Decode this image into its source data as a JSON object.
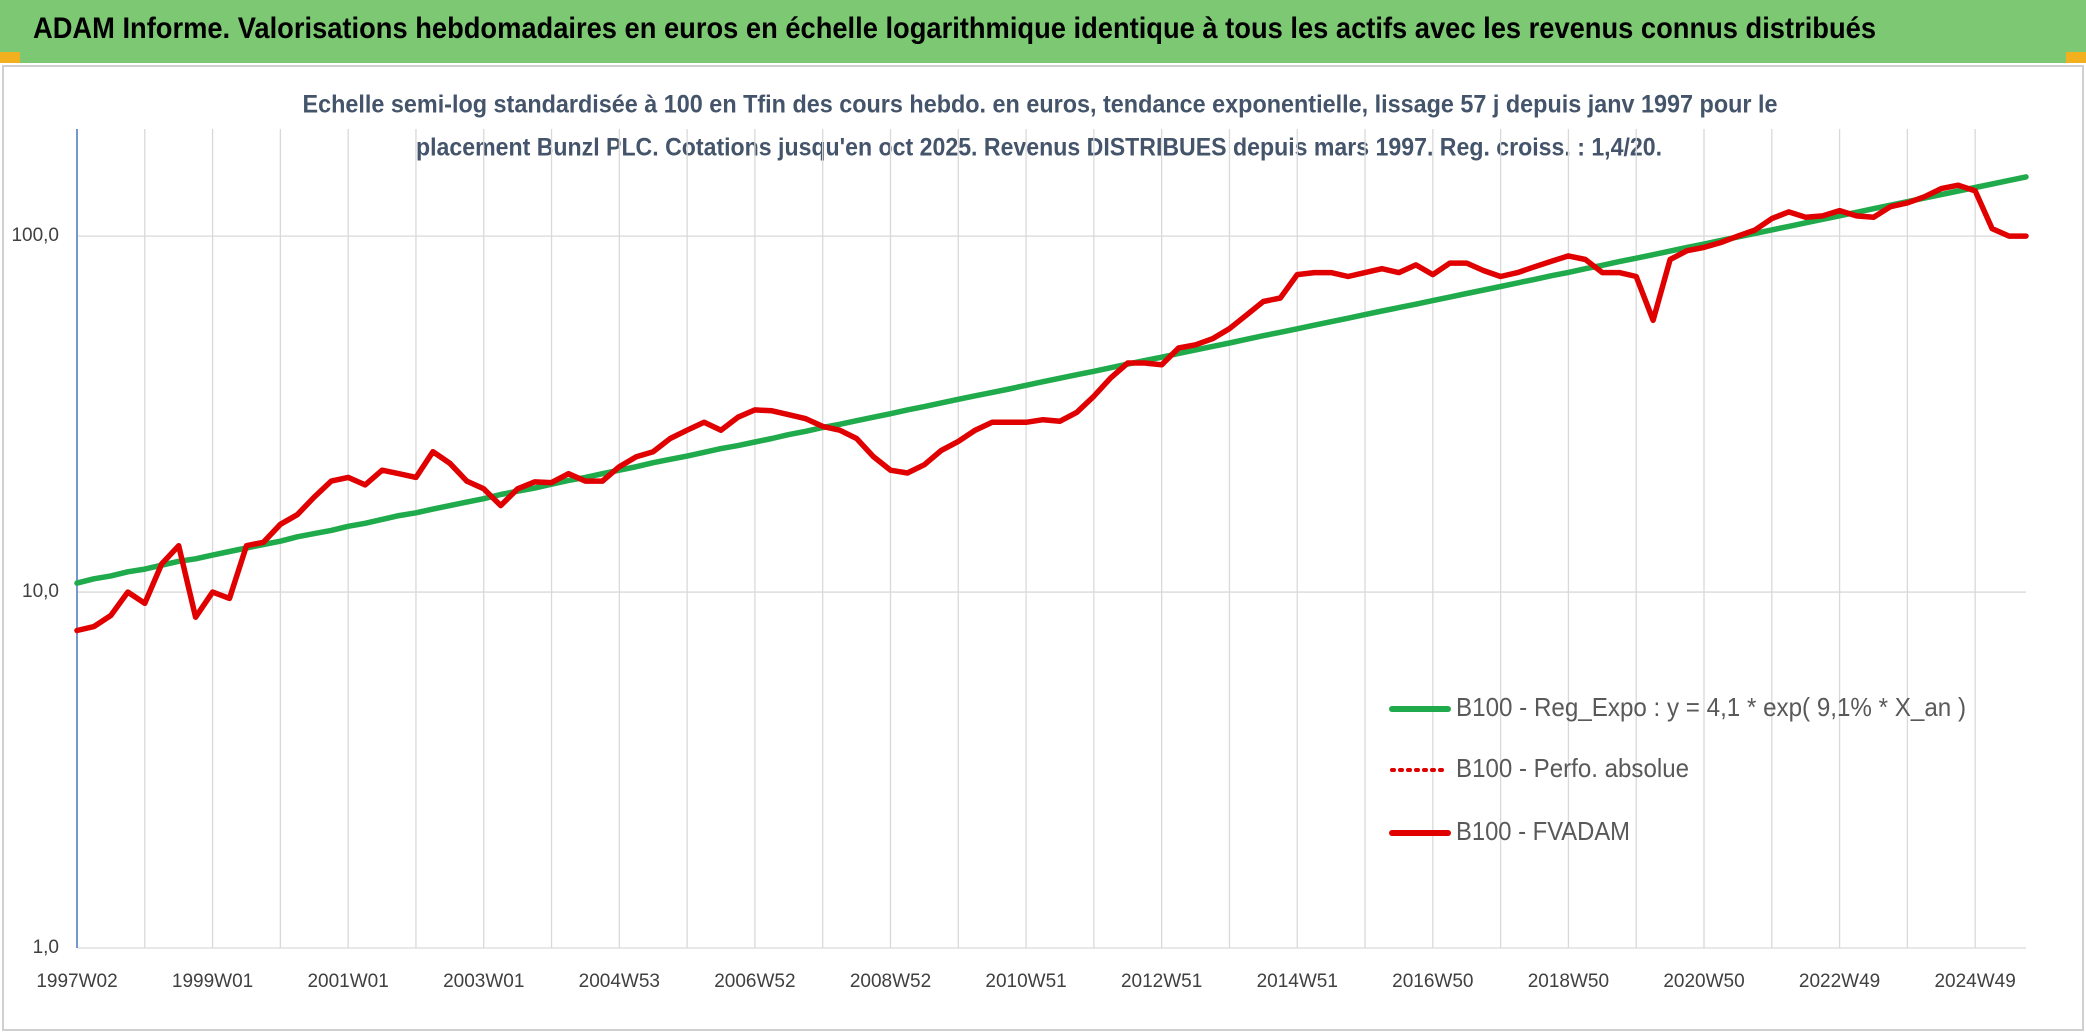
{
  "chart_data": {
    "type": "line",
    "title": "ADAM Informe. Valorisations hebdomadaires en euros en échelle logarithmique identique à tous les actifs avec les revenus connus distribués",
    "subtitle": [
      "Echelle semi-log standardisée à 100 en Tfin des cours hebdo. en euros, tendance exponentielle, lissage 57 j depuis janv 1997 pour le",
      "placement Bunzl PLC. Cotations jusqu'en oct 2025. Revenus DISTRIBUES depuis mars 1997. Reg. croiss. : 1,4/20."
    ],
    "categories": [
      "1997W02",
      null,
      null,
      null,
      null,
      null,
      null,
      null,
      "1999W01",
      null,
      null,
      null,
      null,
      null,
      null,
      null,
      "2001W01",
      null,
      null,
      null,
      null,
      null,
      null,
      null,
      "2003W01",
      null,
      null,
      null,
      null,
      null,
      null,
      null,
      "2004W53",
      null,
      null,
      null,
      null,
      null,
      null,
      null,
      "2006W52",
      null,
      null,
      null,
      null,
      null,
      null,
      null,
      "2008W52",
      null,
      null,
      null,
      null,
      null,
      null,
      null,
      "2010W51",
      null,
      null,
      null,
      null,
      null,
      null,
      null,
      "2012W51",
      null,
      null,
      null,
      null,
      null,
      null,
      null,
      "2014W51",
      null,
      null,
      null,
      null,
      null,
      null,
      null,
      "2016W50",
      null,
      null,
      null,
      null,
      null,
      null,
      null,
      "2018W50",
      null,
      null,
      null,
      null,
      null,
      null,
      null,
      "2020W50",
      null,
      null,
      null,
      null,
      null,
      null,
      null,
      "2022W49",
      null,
      null,
      null,
      null,
      null,
      null,
      null,
      "2024W49",
      null,
      null,
      null
    ],
    "series": [
      {
        "name": "B100 - Reg_Expo : y = 4,1 * exp( 9,1% *  X_an )",
        "color": "#1faa4b",
        "style": "solid",
        "values": [
          10.6,
          10.9,
          11.1,
          11.4,
          11.6,
          11.9,
          12.2,
          12.4,
          12.7,
          13.0,
          13.3,
          13.6,
          13.9,
          14.3,
          14.6,
          14.9,
          15.3,
          15.6,
          16.0,
          16.4,
          16.7,
          17.1,
          17.5,
          17.9,
          18.3,
          18.8,
          19.2,
          19.6,
          20.1,
          20.6,
          21.0,
          21.5,
          22.0,
          22.5,
          23.1,
          23.6,
          24.1,
          24.7,
          25.3,
          25.8,
          26.4,
          27.0,
          27.7,
          28.3,
          29.0,
          29.6,
          30.3,
          31.0,
          31.7,
          32.5,
          33.2,
          34.0,
          34.8,
          35.6,
          36.4,
          37.2,
          38.1,
          39.0,
          39.9,
          40.8,
          41.7,
          42.7,
          43.7,
          44.7,
          45.7,
          46.8,
          47.9,
          49.0,
          50.1,
          51.3,
          52.5,
          53.7,
          54.9,
          56.2,
          57.5,
          58.8,
          60.2,
          61.6,
          63.0,
          64.4,
          65.9,
          67.4,
          69.0,
          70.6,
          72.2,
          73.9,
          75.6,
          77.4,
          79.1,
          81.0,
          82.8,
          84.8,
          86.7,
          88.7,
          90.8,
          92.9,
          95.0,
          97.2,
          99.5,
          101.8,
          104.1,
          106.5,
          109.0,
          111.5,
          114.1,
          116.7,
          119.4,
          122.2,
          125.0,
          127.9,
          130.8,
          133.9,
          137.0,
          140.1,
          143.4,
          146.7
        ]
      },
      {
        "name": "B100 - Perfo. absolue",
        "color": "#e00000",
        "style": "dotted",
        "values": [
          7.8,
          8.0,
          8.6,
          10.0,
          9.3,
          12.0,
          13.5,
          8.5,
          10.0,
          9.6,
          13.5,
          13.8,
          15.5,
          16.5,
          18.5,
          20.5,
          21.0,
          20.0,
          22.0,
          21.5,
          21.0,
          24.8,
          23.0,
          20.5,
          19.5,
          17.5,
          19.5,
          20.4,
          20.3,
          21.5,
          20.5,
          20.5,
          22.5,
          24.0,
          24.8,
          27.0,
          28.5,
          30.0,
          28.5,
          31.0,
          32.5,
          32.3,
          31.5,
          30.7,
          29.2,
          28.5,
          27.0,
          24.0,
          22.0,
          21.6,
          22.8,
          25.0,
          26.5,
          28.5,
          30.0,
          30.0,
          30.0,
          30.5,
          30.2,
          32.0,
          35.5,
          40.0,
          44.0,
          44.0,
          43.5,
          48.5,
          49.5,
          51.5,
          55.0,
          60.0,
          65.5,
          67.0,
          78.0,
          79.0,
          79.0,
          77.0,
          79.0,
          81.0,
          79.0,
          83.0,
          78.0,
          84.0,
          84.0,
          80.0,
          77.0,
          79.0,
          82.0,
          85.0,
          88.0,
          86.0,
          79.0,
          79.0,
          77.0,
          58.0,
          86.0,
          91.0,
          93.0,
          96.0,
          100.0,
          104.0,
          112.0,
          117.0,
          113.0,
          114.0,
          118.0,
          114.0,
          113.0,
          121.0,
          124.0,
          129.0,
          136.0,
          139.0,
          134.0,
          105.0,
          100.0,
          100.0
        ]
      },
      {
        "name": "B100 - FVADAM",
        "color": "#e00000",
        "style": "solid",
        "values": [
          7.8,
          8.0,
          8.6,
          10.0,
          9.3,
          12.0,
          13.5,
          8.5,
          10.0,
          9.6,
          13.5,
          13.8,
          15.5,
          16.5,
          18.5,
          20.5,
          21.0,
          20.0,
          22.0,
          21.5,
          21.0,
          24.8,
          23.0,
          20.5,
          19.5,
          17.5,
          19.5,
          20.4,
          20.3,
          21.5,
          20.5,
          20.5,
          22.5,
          24.0,
          24.8,
          27.0,
          28.5,
          30.0,
          28.5,
          31.0,
          32.5,
          32.3,
          31.5,
          30.7,
          29.2,
          28.5,
          27.0,
          24.0,
          22.0,
          21.6,
          22.8,
          25.0,
          26.5,
          28.5,
          30.0,
          30.0,
          30.0,
          30.5,
          30.2,
          32.0,
          35.5,
          40.0,
          44.0,
          44.0,
          43.5,
          48.5,
          49.5,
          51.5,
          55.0,
          60.0,
          65.5,
          67.0,
          78.0,
          79.0,
          79.0,
          77.0,
          79.0,
          81.0,
          79.0,
          83.0,
          78.0,
          84.0,
          84.0,
          80.0,
          77.0,
          79.0,
          82.0,
          85.0,
          88.0,
          86.0,
          79.0,
          79.0,
          77.0,
          58.0,
          86.0,
          91.0,
          93.0,
          96.0,
          100.0,
          104.0,
          112.0,
          117.0,
          113.0,
          114.0,
          118.0,
          114.0,
          113.0,
          121.0,
          124.0,
          129.0,
          136.0,
          139.0,
          134.0,
          105.0,
          100.0,
          100.0
        ]
      }
    ],
    "ylim": [
      1,
      200
    ],
    "log_scale": true,
    "yticks": [
      {
        "value": 1,
        "label": "1,0"
      },
      {
        "value": 10,
        "label": "10,0"
      },
      {
        "value": 100,
        "label": "100,0"
      }
    ],
    "grid": true,
    "legend": "lower right"
  }
}
